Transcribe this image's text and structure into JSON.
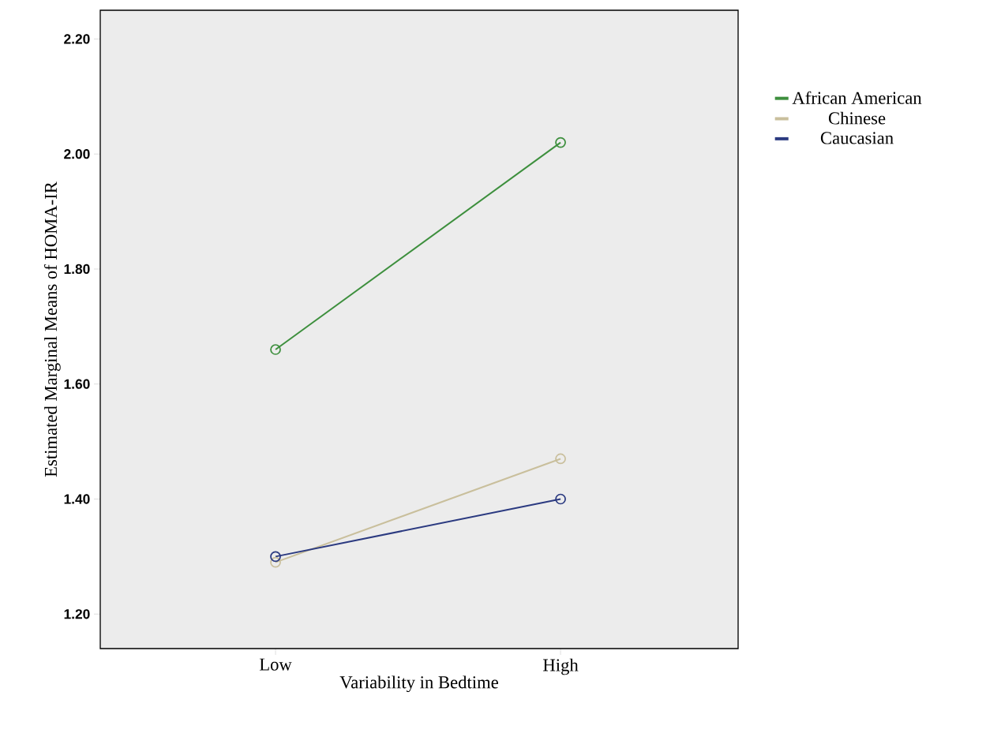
{
  "chart_data": {
    "type": "line",
    "xlabel": "Variability in Bedtime",
    "ylabel": "Estimated Marginal Means of HOMA-IR",
    "categories": [
      "Low",
      "High"
    ],
    "series": [
      {
        "name": "African American",
        "color": "#3d8f3d",
        "values": [
          1.66,
          2.02
        ]
      },
      {
        "name": "Chinese",
        "color": "#c9bf9c",
        "values": [
          1.29,
          1.47
        ]
      },
      {
        "name": "Caucasian",
        "color": "#2b3a80",
        "values": [
          1.3,
          1.4
        ]
      }
    ],
    "ylim": [
      1.14,
      2.25
    ],
    "yticks": [
      {
        "value": 1.2,
        "label": "1.20"
      },
      {
        "value": 1.4,
        "label": "1.40"
      },
      {
        "value": 1.6,
        "label": "1.60"
      },
      {
        "value": 1.8,
        "label": "1.80"
      },
      {
        "value": 2.0,
        "label": "2.00"
      },
      {
        "value": 2.2,
        "label": "2.20"
      }
    ],
    "grid": false,
    "legend": "right",
    "marker": "circle",
    "line_style": "solid"
  }
}
